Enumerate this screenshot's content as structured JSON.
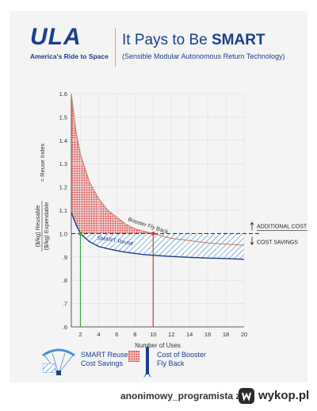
{
  "header": {
    "logo_text": "ULA",
    "logo_tagline": "America's Ride to Space",
    "title_prefix": "It Pays to Be ",
    "title_bold": "SMART",
    "subtitle": "(Sensible Modular Autonomous Return Technology)"
  },
  "chart_data": {
    "type": "line",
    "xlabel": "Number of Uses",
    "ylabel_line1": "($/kg) Reusable",
    "ylabel_line2": "($/kg) Expendable",
    "ylabel_eq": "= Reuse Index",
    "xlim": [
      1,
      20
    ],
    "ylim": [
      0.6,
      1.6
    ],
    "x_ticks": [
      2,
      4,
      6,
      8,
      10,
      12,
      14,
      16,
      18,
      20
    ],
    "y_ticks": [
      0.6,
      0.7,
      0.8,
      0.9,
      1.0,
      1.1,
      1.2,
      1.3,
      1.4,
      1.5,
      1.6
    ],
    "y_tick_labels": [
      ".6",
      ".7",
      ".8",
      ".9",
      "1.0",
      "1.1",
      "1.2",
      "1.3",
      "1.4",
      "1.5",
      "1.6"
    ],
    "series": [
      {
        "name": "Booster Fly Back",
        "x": [
          1,
          1.5,
          2,
          3,
          4,
          5,
          6,
          7,
          8,
          9,
          10,
          12,
          14,
          16,
          18,
          20
        ],
        "y": [
          1.6,
          1.44,
          1.34,
          1.22,
          1.15,
          1.1,
          1.07,
          1.04,
          1.02,
          1.01,
          1.0,
          0.98,
          0.97,
          0.96,
          0.955,
          0.95
        ]
      },
      {
        "name": "SMART Reuse",
        "x": [
          1,
          1.5,
          2,
          3,
          4,
          5,
          6,
          7,
          8,
          9,
          10,
          12,
          14,
          16,
          18,
          20
        ],
        "y": [
          1.09,
          1.04,
          1.0,
          0.965,
          0.945,
          0.935,
          0.927,
          0.92,
          0.915,
          0.91,
          0.907,
          0.902,
          0.898,
          0.895,
          0.893,
          0.89
        ]
      }
    ],
    "breakeven_smart": 2,
    "breakeven_flyback": 10,
    "reference_y": 1.0,
    "annotation_additional": "ADDITIONAL COST",
    "annotation_savings": "COST SAVINGS",
    "colors": {
      "smart": "#1a3f8c",
      "flyback": "#d23a3a",
      "green": "#3aa64a",
      "red_line": "#d23a3a"
    }
  },
  "legend": {
    "smart_line1": "SMART Reuse",
    "smart_line2": "Cost Savings",
    "flyback_line1": "Cost of Booster",
    "flyback_line2": "Fly Back"
  },
  "footer": {
    "username": "anonimowy_programista",
    "z": "z",
    "site": "wykop.pl"
  }
}
